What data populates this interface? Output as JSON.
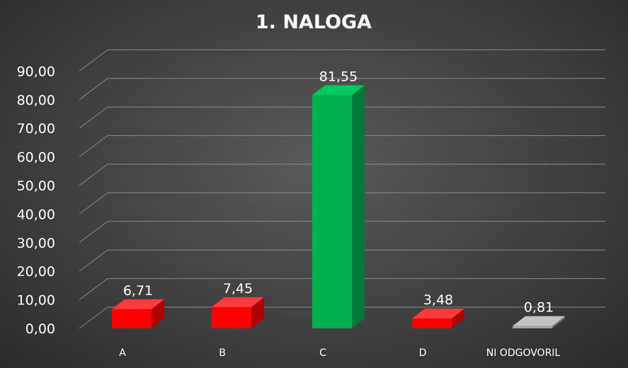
{
  "chart_data": {
    "type": "bar",
    "title": "1. NALOGA",
    "xlabel": "",
    "ylabel": "",
    "categories": [
      "A",
      "B",
      "C",
      "D",
      "NI ODGOVORIL"
    ],
    "values": [
      6.71,
      7.45,
      81.55,
      3.48,
      0.81
    ],
    "data_labels": [
      "6,71",
      "7,45",
      "81,55",
      "3,48",
      "0,81"
    ],
    "yticks": [
      "0,00",
      "10,00",
      "20,00",
      "30,00",
      "40,00",
      "50,00",
      "60,00",
      "70,00",
      "80,00",
      "90,00"
    ],
    "ylim": [
      0,
      90
    ],
    "grid": true,
    "legend": "none",
    "bar_colors": [
      "#ff0000",
      "#ff0000",
      "#00b050",
      "#ff0000",
      "#a6a6a6"
    ],
    "bar_dark_colors": [
      "#b00000",
      "#b00000",
      "#007a36",
      "#b00000",
      "#6e6e6e"
    ],
    "bar_top_colors": [
      "#ff3b3b",
      "#ff3b3b",
      "#00c95b",
      "#ff3b3b",
      "#c4c4c4"
    ]
  }
}
